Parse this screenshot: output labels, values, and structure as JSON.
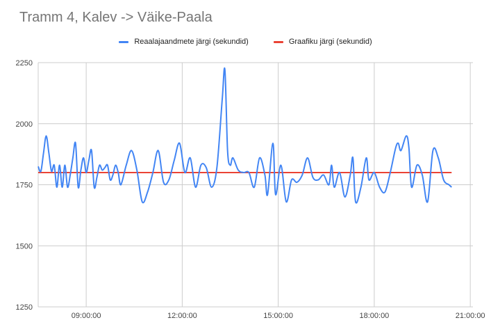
{
  "chart_data": {
    "type": "line",
    "title": "Tramm 4, Kalev -> Väike-Paala",
    "legend_position": "top",
    "grid": true,
    "x_axis": {
      "unit": "time",
      "range": [
        "07:30:00",
        "21:05:00"
      ],
      "tick_labels": [
        "09:00:00",
        "12:00:00",
        "15:00:00",
        "18:00:00",
        "21:00:00"
      ]
    },
    "y_axis": {
      "range": [
        1250,
        2250
      ],
      "tick_labels": [
        "2250",
        "2000",
        "1750",
        "1500",
        "1250"
      ]
    },
    "series": [
      {
        "name": "Reaalajaandmete järgi (sekundid)",
        "color": "#4285f4",
        "points": [
          [
            "07:30",
            "1825"
          ],
          [
            "07:35",
            "1805"
          ],
          [
            "07:40",
            "1880"
          ],
          [
            "07:45",
            "1950"
          ],
          [
            "07:50",
            "1880"
          ],
          [
            "07:55",
            "1805"
          ],
          [
            "08:00",
            "1830"
          ],
          [
            "08:05",
            "1740"
          ],
          [
            "08:10",
            "1830"
          ],
          [
            "08:15",
            "1740"
          ],
          [
            "08:20",
            "1830"
          ],
          [
            "08:25",
            "1740"
          ],
          [
            "08:30",
            "1790"
          ],
          [
            "08:35",
            "1860"
          ],
          [
            "08:40",
            "1920"
          ],
          [
            "08:45",
            "1740"
          ],
          [
            "08:50",
            "1810"
          ],
          [
            "08:55",
            "1860"
          ],
          [
            "09:00",
            "1800"
          ],
          [
            "09:05",
            "1850"
          ],
          [
            "09:10",
            "1890"
          ],
          [
            "09:15",
            "1740"
          ],
          [
            "09:20",
            "1780"
          ],
          [
            "09:25",
            "1830"
          ],
          [
            "09:30",
            "1810"
          ],
          [
            "09:35",
            "1820"
          ],
          [
            "09:40",
            "1830"
          ],
          [
            "09:45",
            "1770"
          ],
          [
            "09:50",
            "1790"
          ],
          [
            "09:55",
            "1830"
          ],
          [
            "10:00",
            "1800"
          ],
          [
            "10:05",
            "1750"
          ],
          [
            "10:15",
            "1830"
          ],
          [
            "10:25",
            "1890"
          ],
          [
            "10:35",
            "1810"
          ],
          [
            "10:45",
            "1680"
          ],
          [
            "10:55",
            "1720"
          ],
          [
            "11:05",
            "1800"
          ],
          [
            "11:15",
            "1890"
          ],
          [
            "11:25",
            "1760"
          ],
          [
            "11:35",
            "1770"
          ],
          [
            "11:45",
            "1850"
          ],
          [
            "11:55",
            "1920"
          ],
          [
            "12:05",
            "1800"
          ],
          [
            "12:15",
            "1860"
          ],
          [
            "12:25",
            "1740"
          ],
          [
            "12:35",
            "1830"
          ],
          [
            "12:45",
            "1820"
          ],
          [
            "12:55",
            "1740"
          ],
          [
            "13:05",
            "1820"
          ],
          [
            "13:15",
            "2100"
          ],
          [
            "13:20",
            "2220"
          ],
          [
            "13:25",
            "1890"
          ],
          [
            "13:30",
            "1830"
          ],
          [
            "13:35",
            "1860"
          ],
          [
            "13:45",
            "1810"
          ],
          [
            "13:55",
            "1800"
          ],
          [
            "14:05",
            "1800"
          ],
          [
            "14:15",
            "1740"
          ],
          [
            "14:25",
            "1860"
          ],
          [
            "14:35",
            "1790"
          ],
          [
            "14:40",
            "1710"
          ],
          [
            "14:50",
            "1920"
          ],
          [
            "14:55",
            "1710"
          ],
          [
            "15:05",
            "1830"
          ],
          [
            "15:15",
            "1680"
          ],
          [
            "15:25",
            "1770"
          ],
          [
            "15:35",
            "1760"
          ],
          [
            "15:45",
            "1790"
          ],
          [
            "15:55",
            "1860"
          ],
          [
            "16:05",
            "1780"
          ],
          [
            "16:15",
            "1770"
          ],
          [
            "16:25",
            "1790"
          ],
          [
            "16:35",
            "1750"
          ],
          [
            "16:40",
            "1830"
          ],
          [
            "16:45",
            "1740"
          ],
          [
            "16:55",
            "1800"
          ],
          [
            "17:05",
            "1700"
          ],
          [
            "17:15",
            "1790"
          ],
          [
            "17:20",
            "1860"
          ],
          [
            "17:25",
            "1680"
          ],
          [
            "17:35",
            "1740"
          ],
          [
            "17:45",
            "1860"
          ],
          [
            "17:50",
            "1770"
          ],
          [
            "18:00",
            "1800"
          ],
          [
            "18:10",
            "1740"
          ],
          [
            "18:20",
            "1720"
          ],
          [
            "18:30",
            "1800"
          ],
          [
            "18:40",
            "1900"
          ],
          [
            "18:45",
            "1920"
          ],
          [
            "18:50",
            "1890"
          ],
          [
            "19:00",
            "1950"
          ],
          [
            "19:05",
            "1900"
          ],
          [
            "19:10",
            "1740"
          ],
          [
            "19:20",
            "1830"
          ],
          [
            "19:30",
            "1790"
          ],
          [
            "19:40",
            "1680"
          ],
          [
            "19:50",
            "1890"
          ],
          [
            "20:00",
            "1860"
          ],
          [
            "20:10",
            "1770"
          ],
          [
            "20:20",
            "1750"
          ],
          [
            "20:25",
            "1740"
          ]
        ]
      },
      {
        "name": "Graafiku järgi (sekundid)",
        "color": "#ea4335",
        "points": [
          [
            "07:30",
            "1800"
          ],
          [
            "20:25",
            "1800"
          ]
        ]
      }
    ]
  }
}
